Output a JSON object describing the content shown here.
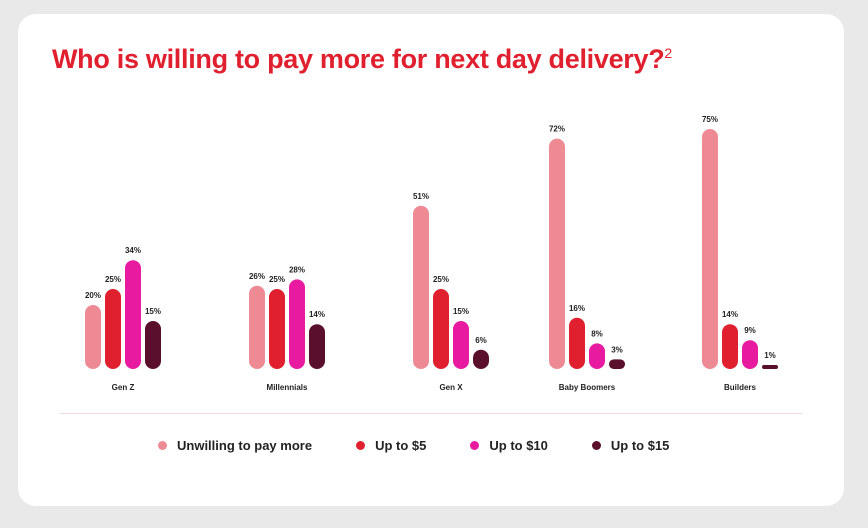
{
  "title": "Who is willing to pay more for next day delivery?",
  "title_footnote": "2",
  "colors": {
    "title": "#e0202e",
    "series": [
      "#ee8a93",
      "#e0202e",
      "#e81aa0",
      "#5a0f2c"
    ]
  },
  "chart_data": {
    "type": "bar",
    "title": "Who is willing to pay more for next day delivery?",
    "categories": [
      "Gen Z",
      "Millennials",
      "Gen X",
      "Baby Boomers",
      "Builders"
    ],
    "series": [
      {
        "name": "Unwilling to pay more",
        "values": [
          20,
          26,
          51,
          72,
          75
        ]
      },
      {
        "name": "Up to $5",
        "values": [
          25,
          25,
          25,
          16,
          14
        ]
      },
      {
        "name": "Up to $10",
        "values": [
          34,
          28,
          15,
          8,
          9
        ]
      },
      {
        "name": "Up to $15",
        "values": [
          15,
          14,
          6,
          3,
          1
        ]
      }
    ],
    "value_suffix": "%",
    "ylim": [
      0,
      75
    ],
    "grid": false,
    "legend_position": "bottom"
  }
}
